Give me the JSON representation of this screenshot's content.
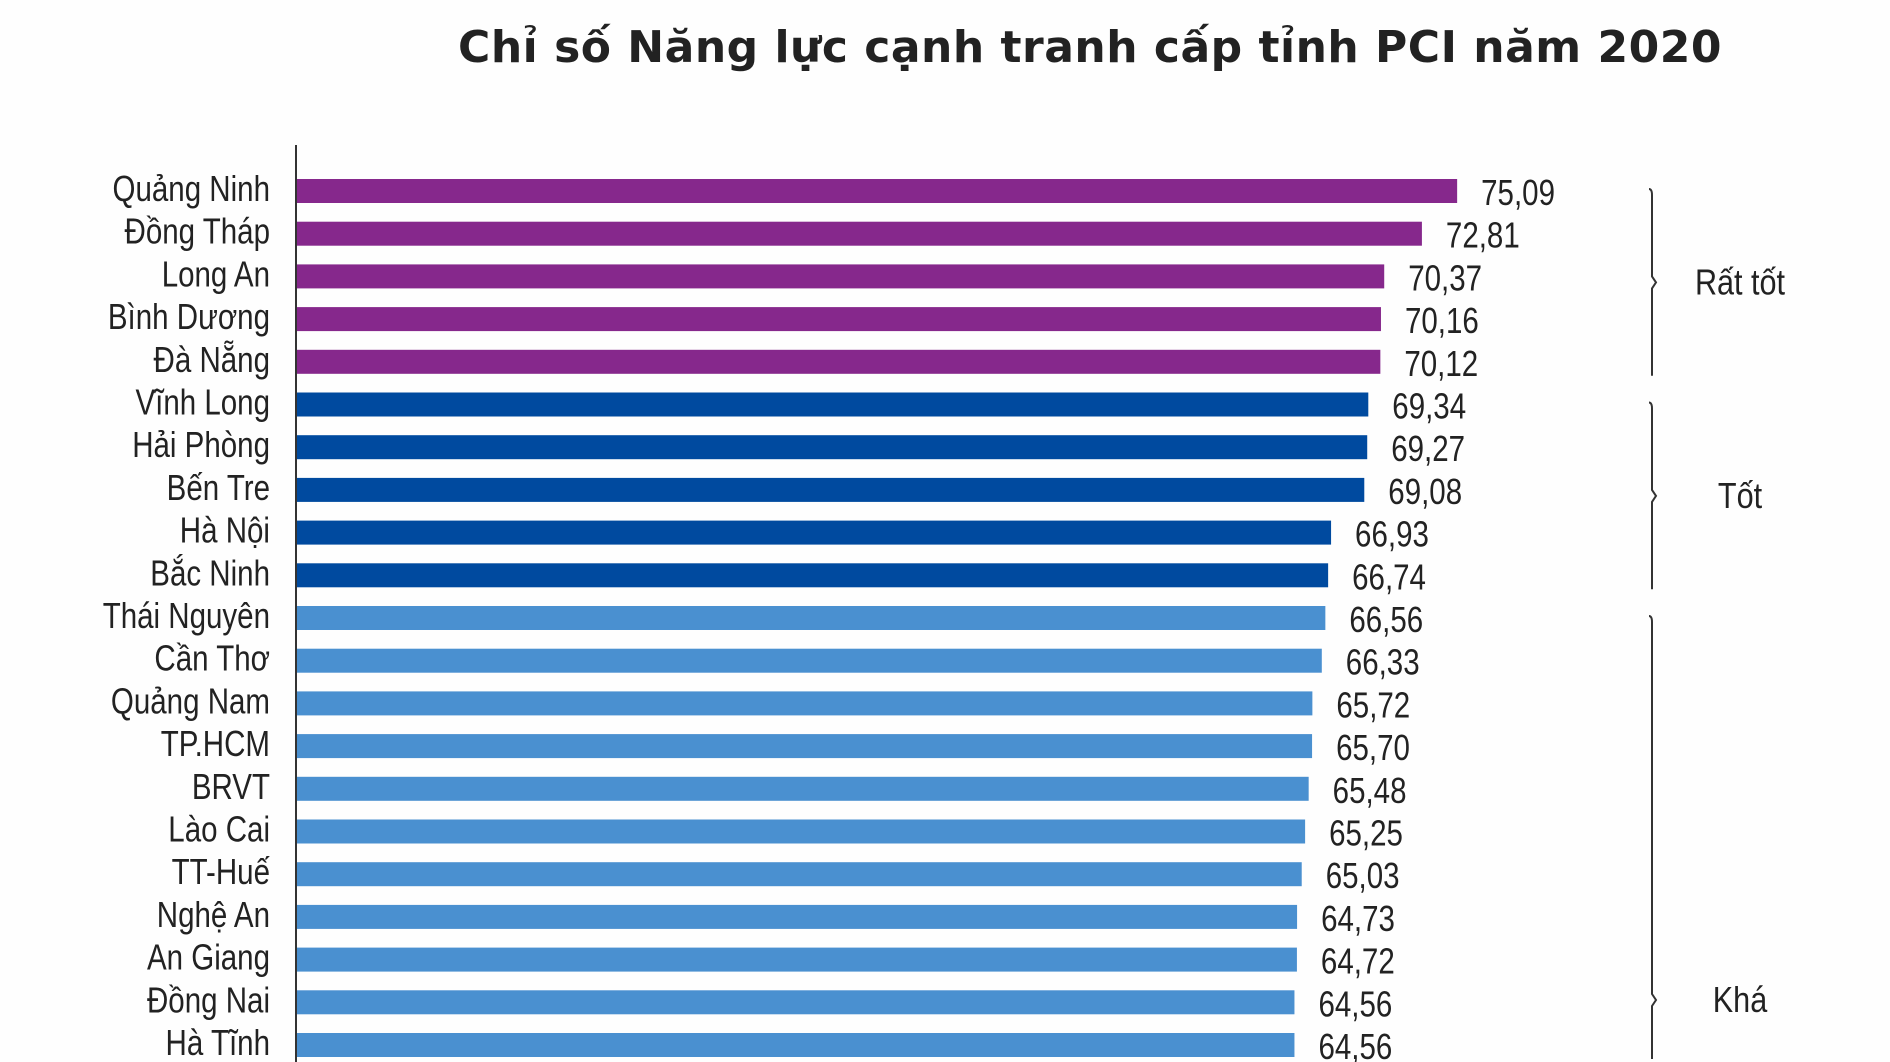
{
  "chart_data": {
    "type": "bar",
    "orientation": "horizontal",
    "title": "Chỉ số Năng lực cạnh tranh cấp tỉnh PCI năm 2020",
    "xlabel": "",
    "ylabel": "",
    "xlim": [
      0,
      80
    ],
    "grid": false,
    "categories": [
      "Quảng Ninh",
      "Đồng Tháp",
      "Long An",
      "Bình Dương",
      "Đà Nẵng",
      "Vĩnh Long",
      "Hải Phòng",
      "Bến Tre",
      "Hà Nội",
      "Bắc Ninh",
      "Thái Nguyên",
      "Cần Thơ",
      "Quảng Nam",
      "TP.HCM",
      "BRVT",
      "Lào Cai",
      "TT-Huế",
      "Nghệ An",
      "An Giang",
      "Đồng Nai",
      "Hà Tĩnh"
    ],
    "values": [
      75.09,
      72.81,
      70.37,
      70.16,
      70.12,
      69.34,
      69.27,
      69.08,
      66.93,
      66.74,
      66.56,
      66.33,
      65.72,
      65.7,
      65.48,
      65.25,
      65.03,
      64.73,
      64.72,
      64.56,
      64.56
    ],
    "value_labels": [
      "75,09",
      "72,81",
      "70,37",
      "70,16",
      "70,12",
      "69,34",
      "69,27",
      "69,08",
      "66,93",
      "66,74",
      "66,56",
      "66,33",
      "65,72",
      "65,70",
      "65,48",
      "65,25",
      "65,03",
      "64,73",
      "64,72",
      "64,56",
      "64,56"
    ],
    "groups": [
      {
        "label": "Rất tốt",
        "from": 0,
        "to": 4,
        "color": "#86288c"
      },
      {
        "label": "Tốt",
        "from": 5,
        "to": 9,
        "color": "#004a9f"
      },
      {
        "label": "Khá",
        "from": 10,
        "to": 20,
        "color": "#4a90d0"
      }
    ]
  }
}
